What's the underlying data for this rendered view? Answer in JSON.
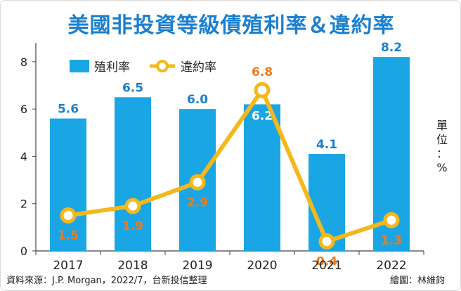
{
  "title": "美國非投資等級債殖利率＆違約率",
  "unit_label": "單\n位\n：\n%",
  "footer": {
    "source": "資料來源：J.P. Morgan，2022/7，台新投信整理",
    "credit": "繪圖：林維鈞"
  },
  "colors": {
    "bar": "#1aa6e4",
    "line": "#f5b81c",
    "bar_label": "#1a7fd0",
    "line_label": "#f07a1a",
    "title": "#1a7fd0"
  },
  "chart_data": {
    "type": "bar+line",
    "title": "美國非投資等級債殖利率＆違約率",
    "categories": [
      "2017",
      "2018",
      "2019",
      "2020",
      "2021",
      "2022"
    ],
    "series": [
      {
        "name": "殖利率",
        "type": "bar",
        "values": [
          5.6,
          6.5,
          6.0,
          6.2,
          4.1,
          8.2
        ]
      },
      {
        "name": "違約率",
        "type": "line",
        "values": [
          1.5,
          1.9,
          2.9,
          6.8,
          0.4,
          1.3
        ]
      }
    ],
    "bar_labels": [
      "5.6",
      "6.5",
      "6.0",
      "6.2",
      "4.1",
      "8.2"
    ],
    "line_labels": [
      "1.5",
      "1.9",
      "2.9",
      "6.8",
      "0.4",
      "1.3"
    ],
    "yticks": [
      "0",
      "2",
      "4",
      "6",
      "8"
    ],
    "ylim": [
      0,
      8.5
    ],
    "ylabel": "單位：%",
    "legend_position": "top-left",
    "grid": false
  }
}
